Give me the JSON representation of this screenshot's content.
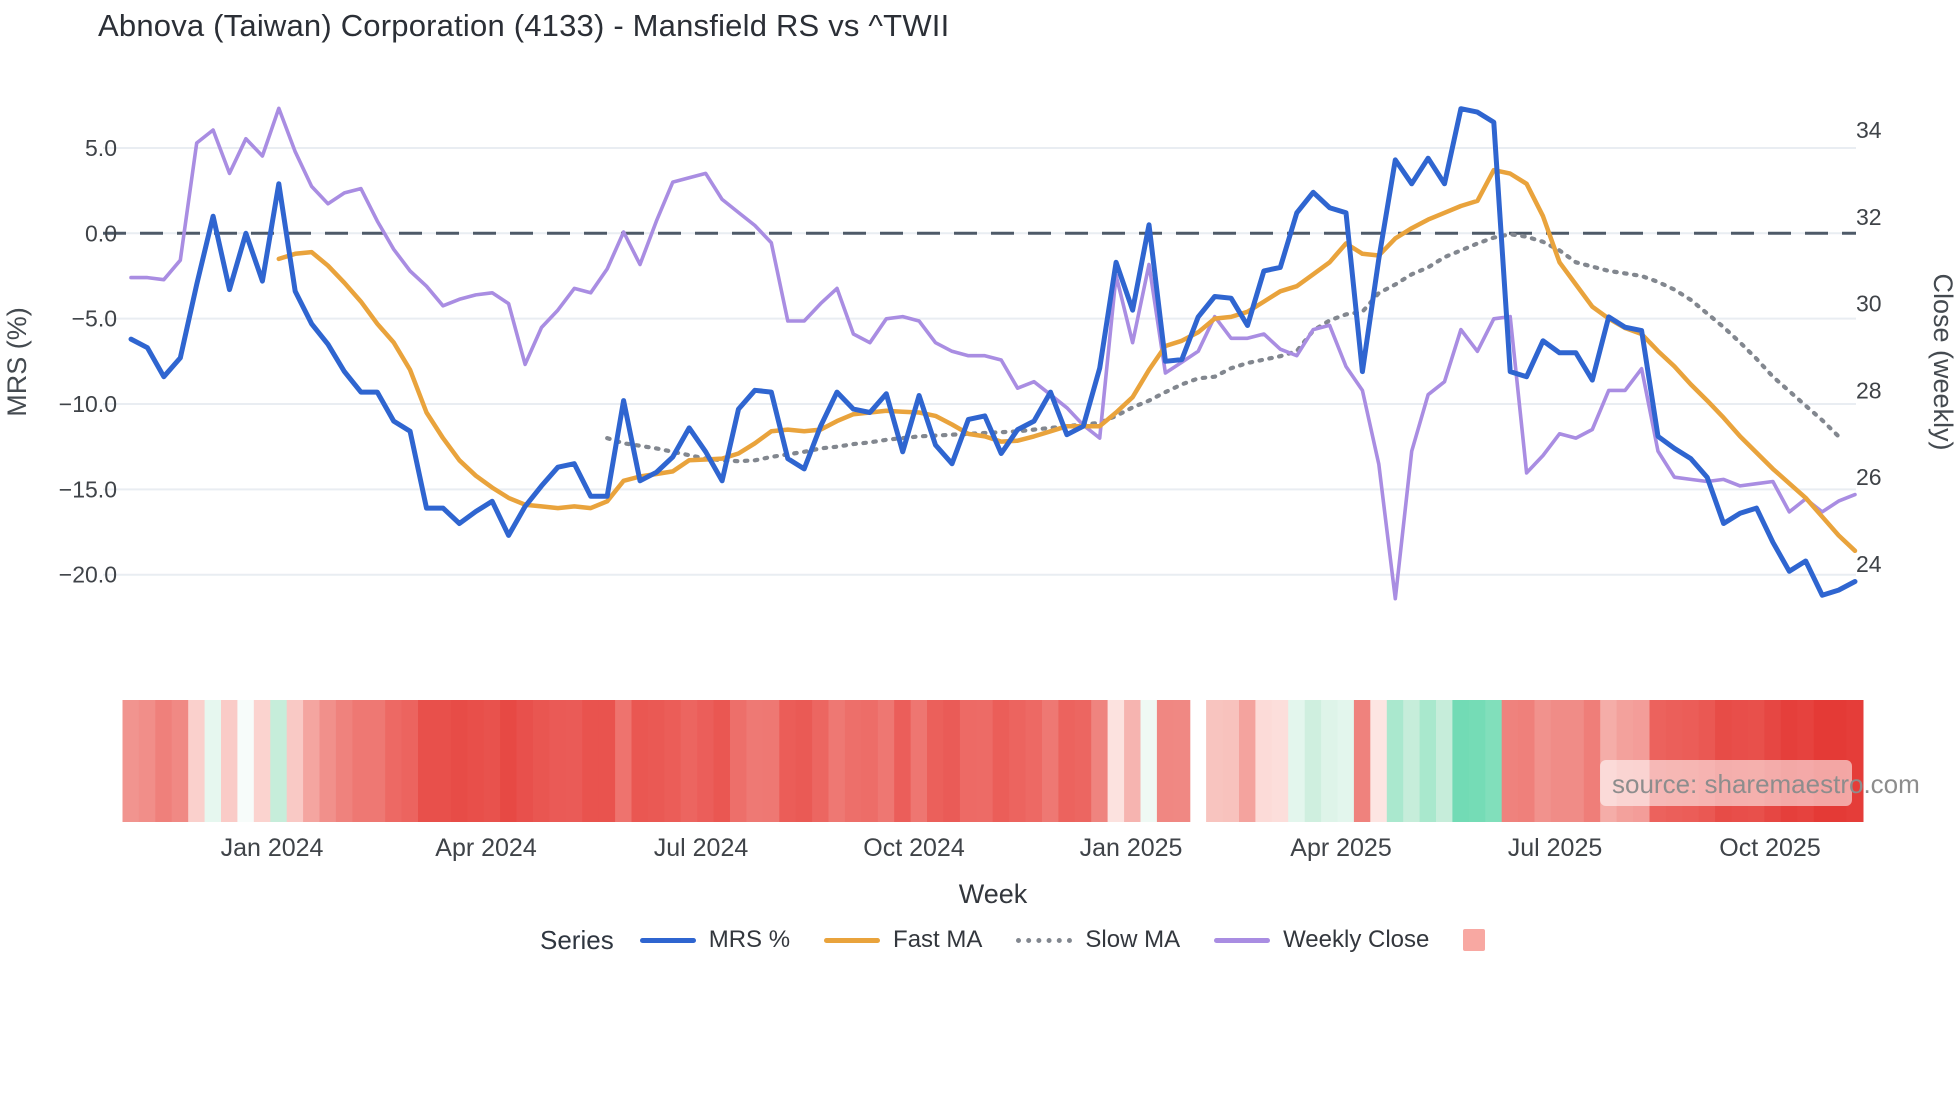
{
  "title": "Abnova (Taiwan) Corporation (4133) - Mansfield RS vs ^TWII",
  "source_note": "source: sharemaestro.com",
  "axes": {
    "x_title": "Week",
    "y_left_title": "MRS (%)",
    "y_right_title": "Close (weekly)",
    "y_left_ticks": [
      {
        "label": "5.0",
        "value": 5
      },
      {
        "label": "0.0",
        "value": 0
      },
      {
        "label": "−5.0",
        "value": -5
      },
      {
        "label": "−10.0",
        "value": -10
      },
      {
        "label": "−15.0",
        "value": -15
      },
      {
        "label": "−20.0",
        "value": -20
      }
    ],
    "y_right_ticks": [
      {
        "label": "34",
        "value": 34
      },
      {
        "label": "32",
        "value": 32
      },
      {
        "label": "30",
        "value": 30
      },
      {
        "label": "28",
        "value": 28
      },
      {
        "label": "26",
        "value": 26
      },
      {
        "label": "24",
        "value": 24
      }
    ]
  },
  "legend": {
    "title": "Series",
    "items": [
      {
        "label": "MRS %",
        "type": "line",
        "color": "#2f65d0"
      },
      {
        "label": "Fast MA",
        "type": "line",
        "color": "#e9a33c"
      },
      {
        "label": "Slow MA",
        "type": "dotted",
        "color": "#82878f"
      },
      {
        "label": "Weekly Close",
        "type": "line",
        "color": "#a98de2"
      },
      {
        "label": "",
        "type": "square",
        "color": "#f8a8a2"
      }
    ]
  },
  "colors": {
    "grid": "#e9edf2",
    "zero_line": "#4e5a68",
    "tick_text": "#3f4348",
    "axis_title_text": "#444a50",
    "source_text": "#8d8d8d",
    "heat_red_max": "#e43a36",
    "heat_green_max": "#6edab3"
  },
  "chart_data": {
    "type": "line",
    "x_unit": "weekly index (Nov 2023 – Nov 2025)",
    "grid": true,
    "legend_position": "bottom",
    "y_left_range": [
      -23.8,
      9.3
    ],
    "y_right_range": [
      22.3,
      35.3
    ],
    "month_ticks": [
      {
        "label": "Jan 2024",
        "i": 8.6
      },
      {
        "label": "Apr 2024",
        "i": 21.6
      },
      {
        "label": "Jul 2024",
        "i": 34.7
      },
      {
        "label": "Oct 2024",
        "i": 47.7
      },
      {
        "label": "Jan 2025",
        "i": 60.9
      },
      {
        "label": "Apr 2025",
        "i": 73.7
      },
      {
        "label": "Jul 2025",
        "i": 86.7
      },
      {
        "label": "Oct 2025",
        "i": 99.8
      }
    ],
    "heatmap_source": "mrs",
    "heatmap_gap_index": 65,
    "series": [
      {
        "name": "MRS %",
        "axis": "left",
        "style": "solid",
        "width": 5,
        "color": "#2f65d0",
        "values": [
          -6.2,
          -6.7,
          -8.4,
          -7.3,
          -3.0,
          1.0,
          -3.3,
          0.0,
          -2.8,
          2.9,
          -3.4,
          -5.3,
          -6.5,
          -8.1,
          -9.3,
          -9.3,
          -11.0,
          -11.6,
          -16.1,
          -16.1,
          -17.0,
          -16.3,
          -15.7,
          -17.7,
          -16.0,
          -14.8,
          -13.7,
          -13.5,
          -15.4,
          -15.4,
          -9.8,
          -14.5,
          -14.0,
          -13.1,
          -11.4,
          -12.8,
          -14.5,
          -10.3,
          -9.2,
          -9.3,
          -13.2,
          -13.8,
          -11.3,
          -9.3,
          -10.3,
          -10.5,
          -9.4,
          -12.8,
          -9.5,
          -12.4,
          -13.5,
          -10.9,
          -10.7,
          -12.9,
          -11.5,
          -11.0,
          -9.3,
          -11.8,
          -11.3,
          -7.9,
          -1.7,
          -4.5,
          0.5,
          -7.5,
          -7.4,
          -4.9,
          -3.7,
          -3.8,
          -5.4,
          -2.2,
          -2.0,
          1.2,
          2.4,
          1.5,
          1.2,
          -8.1,
          -1.5,
          4.3,
          2.9,
          4.4,
          2.9,
          7.3,
          7.1,
          6.5,
          -8.1,
          -8.4,
          -6.3,
          -7.0,
          -7.0,
          -8.6,
          -4.9,
          -5.5,
          -5.7,
          -11.9,
          -12.6,
          -13.2,
          -14.3,
          -17.0,
          -16.4,
          -16.1,
          -18.1,
          -19.8,
          -19.2,
          -21.2,
          -20.9,
          -20.4
        ]
      },
      {
        "name": "Fast MA",
        "axis": "left",
        "style": "solid",
        "width": 4.5,
        "color": "#e9a33c",
        "values": [
          null,
          null,
          null,
          null,
          null,
          null,
          null,
          null,
          null,
          -1.5,
          -1.2,
          -1.1,
          -1.9,
          -2.9,
          -4.0,
          -5.3,
          -6.4,
          -8.0,
          -10.5,
          -12.0,
          -13.3,
          -14.2,
          -14.9,
          -15.5,
          -15.9,
          -16.0,
          -16.1,
          -16.0,
          -16.1,
          -15.7,
          -14.5,
          -14.25,
          -14.1,
          -13.95,
          -13.3,
          -13.25,
          -13.2,
          -12.9,
          -12.3,
          -11.6,
          -11.5,
          -11.6,
          -11.5,
          -11.0,
          -10.6,
          -10.5,
          -10.4,
          -10.45,
          -10.5,
          -10.7,
          -11.2,
          -11.75,
          -11.9,
          -12.2,
          -12.15,
          -11.9,
          -11.6,
          -11.3,
          -11.3,
          -11.3,
          -10.5,
          -9.6,
          -8.0,
          -6.6,
          -6.3,
          -5.8,
          -5.0,
          -4.9,
          -4.6,
          -4.0,
          -3.4,
          -3.1,
          -2.4,
          -1.7,
          -0.6,
          -1.2,
          -1.3,
          -0.3,
          0.3,
          0.8,
          1.2,
          1.6,
          1.9,
          3.7,
          3.5,
          2.9,
          1.0,
          -1.7,
          -3.0,
          -4.3,
          -5.0,
          -5.55,
          -5.9,
          -6.9,
          -7.8,
          -8.85,
          -9.8,
          -10.8,
          -11.9,
          -12.85,
          -13.8,
          -14.65,
          -15.5,
          -16.6,
          -17.7,
          -18.6
        ]
      },
      {
        "name": "Slow MA",
        "axis": "left",
        "style": "dotted",
        "width": 4.2,
        "color": "#82878f",
        "values": [
          null,
          null,
          null,
          null,
          null,
          null,
          null,
          null,
          null,
          null,
          null,
          null,
          null,
          null,
          null,
          null,
          null,
          null,
          null,
          null,
          null,
          null,
          null,
          null,
          null,
          null,
          null,
          null,
          null,
          -12.0,
          -12.3,
          -12.45,
          -12.6,
          -12.8,
          -13.0,
          -13.2,
          -13.3,
          -13.35,
          -13.3,
          -13.1,
          -12.95,
          -12.8,
          -12.6,
          -12.5,
          -12.35,
          -12.25,
          -12.1,
          -12.0,
          -11.9,
          -11.85,
          -11.8,
          -11.75,
          -11.7,
          -11.65,
          -11.6,
          -11.5,
          -11.4,
          -11.3,
          -11.2,
          -11.1,
          -10.7,
          -10.2,
          -9.8,
          -9.3,
          -8.85,
          -8.5,
          -8.4,
          -7.9,
          -7.6,
          -7.4,
          -7.2,
          -6.9,
          -5.7,
          -5.1,
          -4.75,
          -4.6,
          -3.5,
          -3.0,
          -2.4,
          -2.0,
          -1.4,
          -1.0,
          -0.6,
          -0.25,
          -0.05,
          -0.2,
          -0.5,
          -1.0,
          -1.7,
          -1.95,
          -2.2,
          -2.35,
          -2.5,
          -2.85,
          -3.3,
          -3.9,
          -4.7,
          -5.5,
          -6.4,
          -7.35,
          -8.4,
          -9.25,
          -10.1,
          -10.95,
          -11.9,
          null
        ]
      },
      {
        "name": "Weekly Close",
        "axis": "right",
        "style": "solid",
        "width": 3.6,
        "color": "#a98de2",
        "values": [
          30.6,
          30.6,
          30.55,
          31.0,
          33.7,
          34.0,
          33.0,
          33.8,
          33.4,
          34.5,
          33.5,
          32.7,
          32.3,
          32.55,
          32.65,
          31.9,
          31.25,
          30.75,
          30.4,
          29.95,
          30.1,
          30.2,
          30.25,
          30.0,
          28.6,
          29.45,
          29.85,
          30.35,
          30.25,
          30.8,
          31.65,
          30.9,
          31.9,
          32.8,
          32.9,
          33.0,
          32.4,
          32.1,
          31.8,
          31.4,
          29.6,
          29.6,
          30.0,
          30.35,
          29.3,
          29.1,
          29.65,
          29.7,
          29.6,
          29.1,
          28.9,
          28.8,
          28.8,
          28.7,
          28.05,
          28.2,
          27.9,
          27.6,
          27.2,
          26.9,
          30.65,
          29.1,
          30.9,
          28.4,
          28.65,
          28.9,
          29.7,
          29.2,
          29.2,
          29.3,
          28.95,
          28.8,
          29.4,
          29.5,
          28.55,
          28.0,
          26.3,
          23.2,
          26.6,
          27.9,
          28.2,
          29.4,
          28.9,
          29.65,
          29.7,
          26.1,
          26.5,
          27.0,
          26.9,
          27.1,
          28.0,
          28.0,
          28.5,
          26.6,
          26.0,
          25.95,
          25.9,
          25.95,
          25.8,
          25.85,
          25.9,
          25.2,
          25.5,
          25.2,
          25.45,
          25.6
        ]
      }
    ]
  }
}
